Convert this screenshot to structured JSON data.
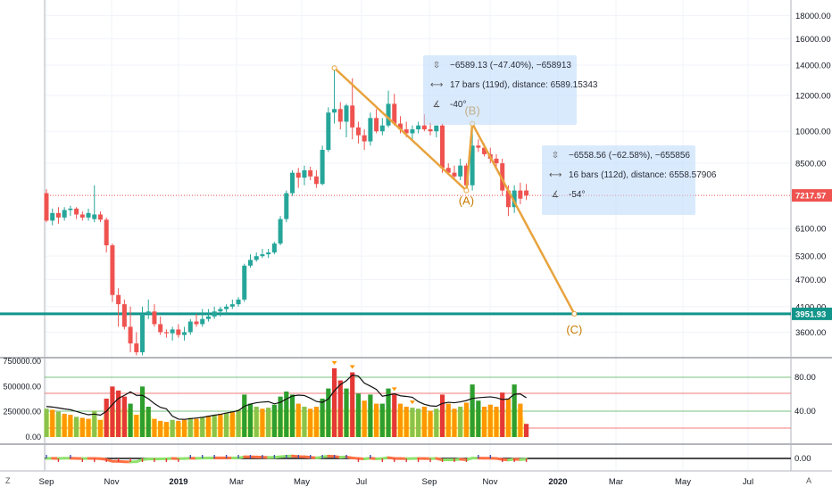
{
  "chart_data": {
    "type": "candlestick",
    "title": "",
    "price_axis": {
      "scale": "log",
      "ticks": [
        "18000.00",
        "16000.00",
        "14000.00",
        "12000.00",
        "10000.00",
        "8500.00",
        "7217.57",
        "6100.00",
        "5300.00",
        "4700.00",
        "4100.00",
        "3951.93",
        "3600.00"
      ],
      "ylim": [
        3250,
        19500
      ],
      "current_price": "7217.57",
      "current_price_color": "#ef5350",
      "horizontal_level": "3951.93",
      "horizontal_level_color": "#12958a",
      "grid": true
    },
    "time_axis": {
      "ticks": [
        "Sep",
        "Nov",
        "2019",
        "Mar",
        "May",
        "Jul",
        "Sep",
        "Nov",
        "2020",
        "Mar",
        "May",
        "Jul"
      ]
    },
    "candle_colors": {
      "up": "#26a69a",
      "down": "#ef5350"
    },
    "candles": [
      {
        "o": 7300,
        "h": 7450,
        "l": 6300,
        "c": 6350
      },
      {
        "o": 6350,
        "h": 6750,
        "l": 6200,
        "c": 6600
      },
      {
        "o": 6600,
        "h": 6800,
        "l": 6250,
        "c": 6450
      },
      {
        "o": 6450,
        "h": 6800,
        "l": 6350,
        "c": 6700
      },
      {
        "o": 6700,
        "h": 6850,
        "l": 6500,
        "c": 6750
      },
      {
        "o": 6750,
        "h": 6800,
        "l": 6400,
        "c": 6550
      },
      {
        "o": 6550,
        "h": 6650,
        "l": 6350,
        "c": 6450
      },
      {
        "o": 6450,
        "h": 6750,
        "l": 6350,
        "c": 6600
      },
      {
        "o": 6400,
        "h": 7600,
        "l": 6300,
        "c": 6550
      },
      {
        "o": 6550,
        "h": 6650,
        "l": 6300,
        "c": 6380
      },
      {
        "o": 6380,
        "h": 6450,
        "l": 5400,
        "c": 5600
      },
      {
        "o": 5600,
        "h": 5650,
        "l": 4200,
        "c": 4350
      },
      {
        "o": 4350,
        "h": 4500,
        "l": 3700,
        "c": 4150
      },
      {
        "o": 4150,
        "h": 4250,
        "l": 3650,
        "c": 3700
      },
      {
        "o": 3700,
        "h": 4100,
        "l": 3250,
        "c": 3400
      },
      {
        "o": 3400,
        "h": 3600,
        "l": 3200,
        "c": 3250
      },
      {
        "o": 3250,
        "h": 4100,
        "l": 3200,
        "c": 3950
      },
      {
        "o": 3950,
        "h": 4250,
        "l": 3850,
        "c": 4000
      },
      {
        "o": 4000,
        "h": 4150,
        "l": 3700,
        "c": 3750
      },
      {
        "o": 3750,
        "h": 3900,
        "l": 3550,
        "c": 3600
      },
      {
        "o": 3600,
        "h": 3650,
        "l": 3500,
        "c": 3580
      },
      {
        "o": 3580,
        "h": 3700,
        "l": 3450,
        "c": 3650
      },
      {
        "o": 3650,
        "h": 3750,
        "l": 3500,
        "c": 3550
      },
      {
        "o": 3550,
        "h": 3700,
        "l": 3450,
        "c": 3600
      },
      {
        "o": 3600,
        "h": 3850,
        "l": 3550,
        "c": 3800
      },
      {
        "o": 3800,
        "h": 3950,
        "l": 3700,
        "c": 3750
      },
      {
        "o": 3750,
        "h": 4050,
        "l": 3700,
        "c": 3850
      },
      {
        "o": 3850,
        "h": 4050,
        "l": 3800,
        "c": 3900
      },
      {
        "o": 3900,
        "h": 4100,
        "l": 3850,
        "c": 4000
      },
      {
        "o": 4000,
        "h": 4100,
        "l": 3900,
        "c": 4050
      },
      {
        "o": 4050,
        "h": 4150,
        "l": 3950,
        "c": 4100
      },
      {
        "o": 4100,
        "h": 4250,
        "l": 4050,
        "c": 4150
      },
      {
        "o": 4150,
        "h": 4300,
        "l": 4100,
        "c": 4250
      },
      {
        "o": 4250,
        "h": 5100,
        "l": 4200,
        "c": 5050
      },
      {
        "o": 5050,
        "h": 5350,
        "l": 5000,
        "c": 5200
      },
      {
        "o": 5200,
        "h": 5400,
        "l": 5150,
        "c": 5300
      },
      {
        "o": 5300,
        "h": 5500,
        "l": 5250,
        "c": 5350
      },
      {
        "o": 5350,
        "h": 5500,
        "l": 5250,
        "c": 5400
      },
      {
        "o": 5400,
        "h": 5700,
        "l": 5350,
        "c": 5650
      },
      {
        "o": 5650,
        "h": 6500,
        "l": 5600,
        "c": 6400
      },
      {
        "o": 6400,
        "h": 7400,
        "l": 6300,
        "c": 7300
      },
      {
        "o": 7300,
        "h": 8200,
        "l": 7200,
        "c": 8100
      },
      {
        "o": 8100,
        "h": 8300,
        "l": 7500,
        "c": 7900
      },
      {
        "o": 7900,
        "h": 8400,
        "l": 7600,
        "c": 8200
      },
      {
        "o": 8200,
        "h": 8350,
        "l": 7800,
        "c": 7950
      },
      {
        "o": 7950,
        "h": 8200,
        "l": 7500,
        "c": 7650
      },
      {
        "o": 7650,
        "h": 9300,
        "l": 7600,
        "c": 9100
      },
      {
        "o": 9100,
        "h": 11300,
        "l": 9000,
        "c": 11000
      },
      {
        "o": 11000,
        "h": 13800,
        "l": 10400,
        "c": 11200
      },
      {
        "o": 11200,
        "h": 11600,
        "l": 10100,
        "c": 10500
      },
      {
        "o": 10500,
        "h": 11500,
        "l": 9700,
        "c": 11400
      },
      {
        "o": 11400,
        "h": 13100,
        "l": 9600,
        "c": 10200
      },
      {
        "o": 10200,
        "h": 10500,
        "l": 9400,
        "c": 9800
      },
      {
        "o": 9800,
        "h": 10100,
        "l": 9100,
        "c": 9500
      },
      {
        "o": 9500,
        "h": 11000,
        "l": 9300,
        "c": 10700
      },
      {
        "o": 10700,
        "h": 11200,
        "l": 9900,
        "c": 10000
      },
      {
        "o": 10000,
        "h": 10700,
        "l": 9800,
        "c": 10300
      },
      {
        "o": 10300,
        "h": 12300,
        "l": 10200,
        "c": 11500
      },
      {
        "o": 11500,
        "h": 12100,
        "l": 10300,
        "c": 10400
      },
      {
        "o": 10400,
        "h": 10800,
        "l": 9900,
        "c": 10100
      },
      {
        "o": 10100,
        "h": 10500,
        "l": 9700,
        "c": 9900
      },
      {
        "o": 9900,
        "h": 10300,
        "l": 9600,
        "c": 10100
      },
      {
        "o": 10100,
        "h": 10500,
        "l": 9900,
        "c": 10300
      },
      {
        "o": 10300,
        "h": 10900,
        "l": 10000,
        "c": 10100
      },
      {
        "o": 10100,
        "h": 10450,
        "l": 9800,
        "c": 10000
      },
      {
        "o": 10000,
        "h": 10200,
        "l": 9700,
        "c": 10300
      },
      {
        "o": 10300,
        "h": 10400,
        "l": 8100,
        "c": 8300
      },
      {
        "o": 8300,
        "h": 8500,
        "l": 8000,
        "c": 8100
      },
      {
        "o": 8100,
        "h": 8400,
        "l": 7800,
        "c": 7950
      },
      {
        "o": 7950,
        "h": 8700,
        "l": 7800,
        "c": 8400
      },
      {
        "o": 8400,
        "h": 8500,
        "l": 7400,
        "c": 7600
      },
      {
        "o": 7600,
        "h": 10400,
        "l": 7400,
        "c": 9300
      },
      {
        "o": 9300,
        "h": 9600,
        "l": 9000,
        "c": 9200
      },
      {
        "o": 9200,
        "h": 9400,
        "l": 8800,
        "c": 8900
      },
      {
        "o": 8900,
        "h": 9200,
        "l": 8500,
        "c": 8700
      },
      {
        "o": 8700,
        "h": 8900,
        "l": 8300,
        "c": 8500
      },
      {
        "o": 8500,
        "h": 8700,
        "l": 7200,
        "c": 7400
      },
      {
        "o": 7400,
        "h": 7600,
        "l": 6500,
        "c": 6800
      },
      {
        "o": 6800,
        "h": 7600,
        "l": 6600,
        "c": 7400
      },
      {
        "o": 7400,
        "h": 7700,
        "l": 6900,
        "c": 7100
      },
      {
        "o": 7400,
        "h": 7650,
        "l": 7050,
        "c": 7218
      }
    ],
    "measurements": [
      {
        "price_change": "−6589.13 (−47.40%), −658913",
        "bars": "17 bars (119d), distance: 6589.15343",
        "angle": "-40°"
      },
      {
        "price_change": "−6558.56 (−62.58%), −655856",
        "bars": "16 bars (112d), distance: 6558.57906",
        "angle": "-54°"
      }
    ],
    "wave_drawing": {
      "color": "#e8a33d",
      "points": [
        {
          "label": "",
          "candle": 48,
          "price": 13800
        },
        {
          "label": "(A)",
          "candle": 70,
          "price": 7400
        },
        {
          "label": "(B)",
          "candle": 71,
          "price": 10400
        },
        {
          "label": "(C)",
          "candle": 88,
          "price": 3951.93
        }
      ]
    },
    "volume_panel": {
      "left_axis_ticks": [
        "750000.00",
        "500000.00",
        "250000.00",
        "0.00"
      ],
      "right_axis_ticks": [
        "80.00",
        "40.00"
      ],
      "band_color": "#ffff99",
      "bar_colors": {
        "high": "#2e9e2e",
        "low": "#ff9800",
        "red": "#e53935",
        "lime": "#8bc34a"
      },
      "bars": [
        {
          "v": 280000,
          "c": "lime"
        },
        {
          "v": 270000,
          "c": "low"
        },
        {
          "v": 250000,
          "c": "lime"
        },
        {
          "v": 230000,
          "c": "low"
        },
        {
          "v": 220000,
          "c": "low"
        },
        {
          "v": 200000,
          "c": "lime"
        },
        {
          "v": 190000,
          "c": "low"
        },
        {
          "v": 180000,
          "c": "low"
        },
        {
          "v": 260000,
          "c": "lime"
        },
        {
          "v": 170000,
          "c": "low"
        },
        {
          "v": 380000,
          "c": "red"
        },
        {
          "v": 500000,
          "c": "red"
        },
        {
          "v": 460000,
          "c": "red"
        },
        {
          "v": 400000,
          "c": "red"
        },
        {
          "v": 330000,
          "c": "high"
        },
        {
          "v": 220000,
          "c": "low"
        },
        {
          "v": 500000,
          "c": "high"
        },
        {
          "v": 300000,
          "c": "high"
        },
        {
          "v": 180000,
          "c": "low"
        },
        {
          "v": 160000,
          "c": "low"
        },
        {
          "v": 150000,
          "c": "low"
        },
        {
          "v": 170000,
          "c": "lime"
        },
        {
          "v": 160000,
          "c": "low"
        },
        {
          "v": 170000,
          "c": "low"
        },
        {
          "v": 190000,
          "c": "lime"
        },
        {
          "v": 180000,
          "c": "low"
        },
        {
          "v": 200000,
          "c": "lime"
        },
        {
          "v": 210000,
          "c": "low"
        },
        {
          "v": 220000,
          "c": "lime"
        },
        {
          "v": 230000,
          "c": "low"
        },
        {
          "v": 240000,
          "c": "lime"
        },
        {
          "v": 250000,
          "c": "low"
        },
        {
          "v": 270000,
          "c": "lime"
        },
        {
          "v": 420000,
          "c": "high"
        },
        {
          "v": 330000,
          "c": "high"
        },
        {
          "v": 300000,
          "c": "lime"
        },
        {
          "v": 280000,
          "c": "low"
        },
        {
          "v": 290000,
          "c": "lime"
        },
        {
          "v": 320000,
          "c": "high"
        },
        {
          "v": 400000,
          "c": "high"
        },
        {
          "v": 450000,
          "c": "high"
        },
        {
          "v": 420000,
          "c": "high"
        },
        {
          "v": 330000,
          "c": "low"
        },
        {
          "v": 300000,
          "c": "lime"
        },
        {
          "v": 280000,
          "c": "low"
        },
        {
          "v": 300000,
          "c": "low"
        },
        {
          "v": 380000,
          "c": "high"
        },
        {
          "v": 480000,
          "c": "high"
        },
        {
          "v": 680000,
          "c": "red"
        },
        {
          "v": 560000,
          "c": "red"
        },
        {
          "v": 480000,
          "c": "high"
        },
        {
          "v": 640000,
          "c": "red"
        },
        {
          "v": 430000,
          "c": "high"
        },
        {
          "v": 360000,
          "c": "low"
        },
        {
          "v": 420000,
          "c": "high"
        },
        {
          "v": 330000,
          "c": "low"
        },
        {
          "v": 330000,
          "c": "high"
        },
        {
          "v": 480000,
          "c": "high"
        },
        {
          "v": 420000,
          "c": "red"
        },
        {
          "v": 330000,
          "c": "low"
        },
        {
          "v": 300000,
          "c": "low"
        },
        {
          "v": 290000,
          "c": "lime"
        },
        {
          "v": 280000,
          "c": "lime"
        },
        {
          "v": 300000,
          "c": "low"
        },
        {
          "v": 260000,
          "c": "low"
        },
        {
          "v": 280000,
          "c": "lime"
        },
        {
          "v": 420000,
          "c": "red"
        },
        {
          "v": 330000,
          "c": "low"
        },
        {
          "v": 280000,
          "c": "low"
        },
        {
          "v": 300000,
          "c": "lime"
        },
        {
          "v": 340000,
          "c": "low"
        },
        {
          "v": 520000,
          "c": "high"
        },
        {
          "v": 360000,
          "c": "high"
        },
        {
          "v": 300000,
          "c": "low"
        },
        {
          "v": 320000,
          "c": "low"
        },
        {
          "v": 300000,
          "c": "low"
        },
        {
          "v": 440000,
          "c": "red"
        },
        {
          "v": 380000,
          "c": "low"
        },
        {
          "v": 520000,
          "c": "high"
        },
        {
          "v": 330000,
          "c": "low"
        },
        {
          "v": 130000,
          "c": "red"
        }
      ]
    },
    "oscillator_panel": {
      "right_axis_ticks": [
        "0.00"
      ]
    }
  },
  "corner_left": "Z",
  "corner_right": "A"
}
